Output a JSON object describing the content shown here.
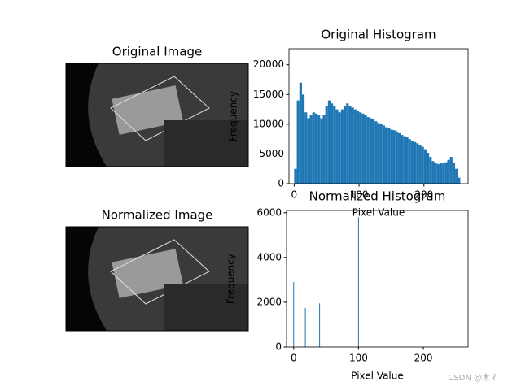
{
  "chart_data": [
    {
      "type": "image",
      "title": "Original Image"
    },
    {
      "type": "histogram",
      "title": "Original Histogram",
      "xlabel": "Pixel Value",
      "ylabel": "Frequency",
      "color": "#1f77b4",
      "bins": [
        0,
        4,
        8,
        12,
        16,
        20,
        24,
        28,
        32,
        36,
        40,
        44,
        48,
        52,
        56,
        60,
        64,
        68,
        72,
        76,
        80,
        84,
        88,
        92,
        96,
        100,
        104,
        108,
        112,
        116,
        120,
        124,
        128,
        132,
        136,
        140,
        144,
        148,
        152,
        156,
        160,
        164,
        168,
        172,
        176,
        180,
        184,
        188,
        192,
        196,
        200,
        204,
        208,
        212,
        216,
        220,
        224,
        228,
        232,
        236,
        240,
        244,
        248,
        252,
        256
      ],
      "values": [
        2500,
        14000,
        17000,
        15000,
        12000,
        11000,
        11500,
        12000,
        11800,
        11500,
        11000,
        11500,
        13000,
        14000,
        13500,
        13000,
        12500,
        12000,
        12500,
        13000,
        13500,
        13000,
        12800,
        12500,
        12200,
        12000,
        11800,
        11500,
        11200,
        11000,
        10800,
        10500,
        10200,
        10000,
        9800,
        9500,
        9300,
        9100,
        9000,
        8800,
        8500,
        8200,
        8000,
        7800,
        7500,
        7200,
        7000,
        6800,
        6500,
        6200,
        5800,
        5200,
        4500,
        3800,
        3500,
        3300,
        3500,
        3400,
        3600,
        4000,
        4500,
        3500,
        2500,
        1000
      ],
      "xlim": [
        -8,
        268
      ],
      "xticks": [
        0,
        100,
        200
      ],
      "ylim": [
        0,
        22700
      ],
      "yticks": [
        0,
        5000,
        10000,
        15000,
        20000
      ]
    },
    {
      "type": "image",
      "title": "Normalized Image"
    },
    {
      "type": "bar",
      "title": "Normalized Histogram",
      "xlabel": "Pixel Value",
      "ylabel": "Frequency",
      "color": "#1f77b4",
      "x": [
        0,
        18,
        40,
        100,
        124
      ],
      "values": [
        2900,
        1750,
        1950,
        5800,
        2300
      ],
      "xlim": [
        -11,
        269
      ],
      "xticks": [
        0,
        100,
        200
      ],
      "ylim": [
        0,
        6100
      ],
      "yticks": [
        0,
        2000,
        4000,
        6000
      ]
    }
  ],
  "watermark": "CSDN @木彳"
}
